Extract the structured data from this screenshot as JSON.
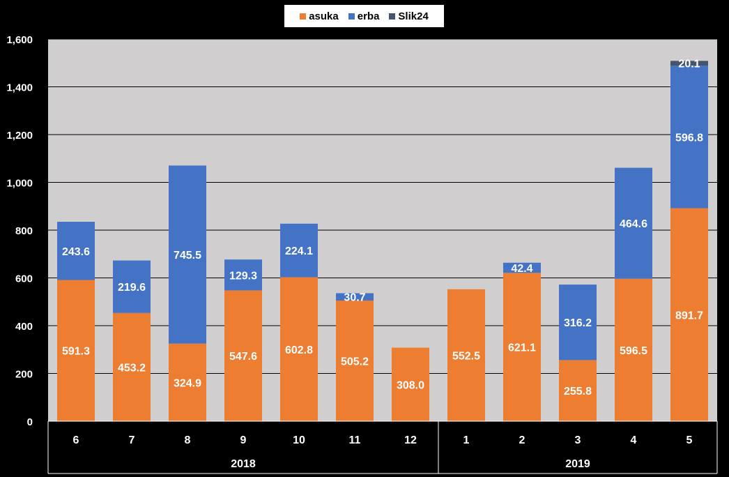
{
  "colors": {
    "background": "#000000",
    "plot_area": "#d0cece",
    "asuka": "#ed7d31",
    "erba": "#4472c4",
    "slik24": "#44546a",
    "label_text": "#ffffff",
    "axis_text": "#ffffff"
  },
  "chart_data": {
    "type": "bar",
    "stacked": true,
    "categories": [
      "6",
      "7",
      "8",
      "9",
      "10",
      "11",
      "12",
      "1",
      "2",
      "3",
      "4",
      "5"
    ],
    "groups": [
      {
        "label": "2018",
        "categories": [
          "6",
          "7",
          "8",
          "9",
          "10",
          "11",
          "12"
        ]
      },
      {
        "label": "2019",
        "categories": [
          "1",
          "2",
          "3",
          "4",
          "5"
        ]
      }
    ],
    "series": [
      {
        "name": "asuka",
        "values": [
          591.3,
          453.2,
          324.9,
          547.6,
          602.8,
          505.2,
          308.0,
          552.5,
          621.1,
          255.8,
          596.5,
          891.7
        ],
        "labels": [
          "591.3",
          "453.2",
          "324.9",
          "547.6",
          "602.8",
          "505.2",
          "308.0",
          "552.5",
          "621.1",
          "255.8",
          "596.5",
          "891.7"
        ]
      },
      {
        "name": "erba",
        "values": [
          243.6,
          219.6,
          745.5,
          129.3,
          224.1,
          30.7,
          0,
          0,
          42.4,
          316.2,
          464.6,
          596.8
        ],
        "labels": [
          "243.6",
          "219.6",
          "745.5",
          "129.3",
          "224.1",
          "30.7",
          "",
          "",
          "42.4",
          "316.2",
          "464.6",
          "596.8"
        ]
      },
      {
        "name": "Slik24",
        "values": [
          0,
          0,
          0,
          0,
          0,
          0,
          0,
          0,
          0,
          0,
          0,
          20.1
        ],
        "labels": [
          "",
          "",
          "",
          "",
          "",
          "",
          "",
          "",
          "",
          "",
          "",
          "20.1"
        ]
      }
    ],
    "y_ticks": [
      "0",
      "200",
      "400",
      "600",
      "800",
      "1,000",
      "1,200",
      "1,400",
      "1,600"
    ],
    "ylim": [
      0,
      1600
    ],
    "grid": true,
    "legend_position": "top-center"
  },
  "legend": [
    {
      "name": "asuka",
      "color": "#ed7d31"
    },
    {
      "name": "erba",
      "color": "#4472c4"
    },
    {
      "name": "Slik24",
      "color": "#44546a"
    }
  ]
}
